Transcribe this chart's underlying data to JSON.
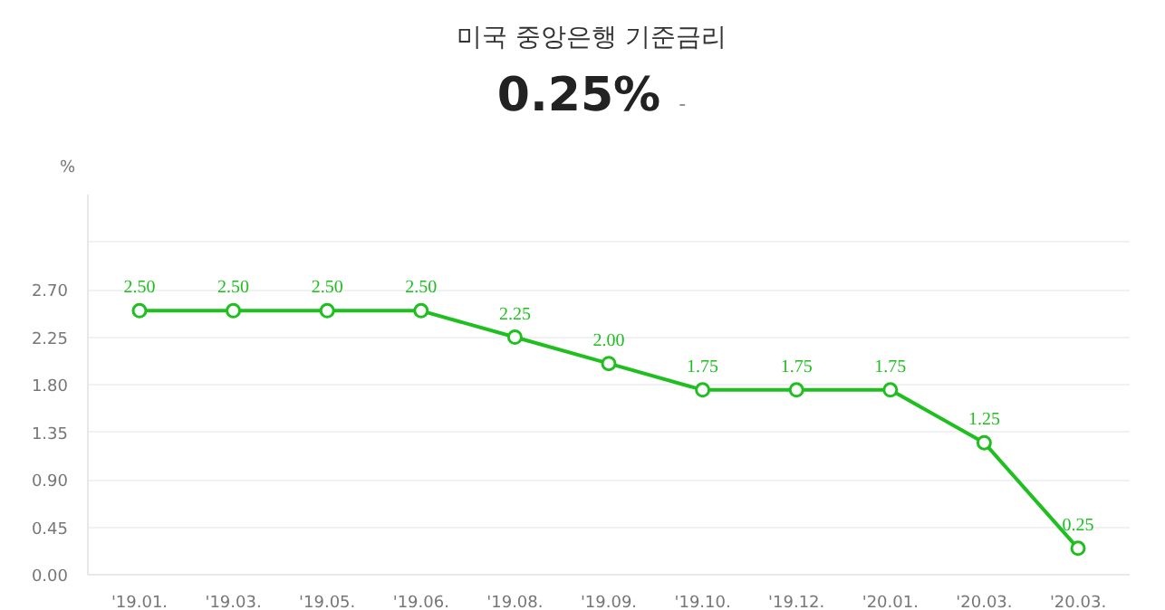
{
  "chart_data": {
    "type": "line",
    "title": "미국 중앙은행 기준금리",
    "subtitle": "0.25%",
    "annotations": [
      "-"
    ],
    "ylabel": "%",
    "categories": [
      "'19.01.",
      "'19.03.",
      "'19.05.",
      "'19.06.",
      "'19.08.",
      "'19.09.",
      "'19.10.",
      "'19.12.",
      "'20.01.",
      "'20.03.",
      "'20.03."
    ],
    "series": [
      {
        "color": "#1fbf1f",
        "values": [
          2.5,
          2.5,
          2.5,
          2.5,
          2.25,
          2.0,
          1.75,
          1.75,
          1.75,
          1.25,
          0.25
        ],
        "value_labels": [
          "2.50",
          "2.50",
          "2.50",
          "2.50",
          "2.25",
          "2.00",
          "1.75",
          "1.75",
          "1.75",
          "1.25",
          "0.25"
        ]
      }
    ],
    "ylim": [
      0,
      3.6
    ],
    "yticks": [
      {
        "value": 0,
        "label": "0.00"
      },
      {
        "value": 0.45,
        "label": "0.45"
      },
      {
        "value": 0.9,
        "label": "0.90"
      },
      {
        "value": 1.35,
        "label": "1.35"
      },
      {
        "value": 1.8,
        "label": "1.80"
      },
      {
        "value": 2.25,
        "label": "2.25"
      },
      {
        "value": 2.7,
        "label": "2.70"
      },
      {
        "value": 3.15,
        "label": null
      }
    ],
    "grid": "y",
    "marker": "circle",
    "line_style": "solid"
  }
}
